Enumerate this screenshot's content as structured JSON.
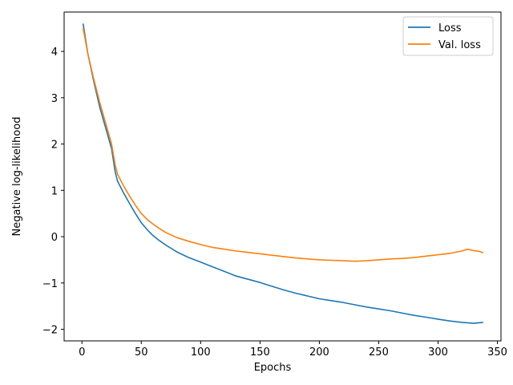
{
  "chart_data": {
    "type": "line",
    "title": "",
    "xlabel": "Epochs",
    "ylabel": "Negative log-likelihood",
    "xlim": [
      -15,
      353
    ],
    "ylim": [
      -2.25,
      4.85
    ],
    "xticks": [
      0,
      50,
      100,
      150,
      200,
      250,
      300,
      350
    ],
    "yticks": [
      -2,
      -1,
      0,
      1,
      2,
      3,
      4
    ],
    "grid": false,
    "legend_position": "top-right",
    "series": [
      {
        "name": "Loss",
        "color": "#1f77b4",
        "x": [
          1,
          5,
          10,
          15,
          20,
          25,
          28,
          30,
          35,
          40,
          45,
          50,
          55,
          60,
          65,
          70,
          75,
          80,
          90,
          100,
          110,
          120,
          130,
          140,
          150,
          160,
          170,
          180,
          190,
          200,
          210,
          220,
          230,
          240,
          250,
          260,
          270,
          280,
          290,
          300,
          310,
          320,
          330,
          338
        ],
        "y": [
          4.6,
          3.95,
          3.35,
          2.8,
          2.35,
          1.9,
          1.4,
          1.2,
          0.95,
          0.72,
          0.5,
          0.3,
          0.15,
          0.02,
          -0.08,
          -0.17,
          -0.25,
          -0.33,
          -0.45,
          -0.55,
          -0.65,
          -0.75,
          -0.85,
          -0.92,
          -0.99,
          -1.07,
          -1.15,
          -1.22,
          -1.28,
          -1.34,
          -1.38,
          -1.42,
          -1.47,
          -1.52,
          -1.56,
          -1.6,
          -1.65,
          -1.7,
          -1.74,
          -1.78,
          -1.82,
          -1.85,
          -1.87,
          -1.85
        ]
      },
      {
        "name": "Val. loss",
        "color": "#ff7f0e",
        "x": [
          1,
          5,
          10,
          15,
          20,
          25,
          28,
          30,
          35,
          40,
          45,
          50,
          55,
          60,
          65,
          70,
          75,
          80,
          90,
          100,
          110,
          120,
          130,
          140,
          150,
          160,
          170,
          180,
          190,
          200,
          210,
          220,
          230,
          240,
          250,
          260,
          270,
          280,
          290,
          300,
          310,
          320,
          325,
          330,
          335,
          338
        ],
        "y": [
          4.5,
          3.95,
          3.4,
          2.9,
          2.45,
          2.0,
          1.55,
          1.35,
          1.1,
          0.88,
          0.68,
          0.5,
          0.37,
          0.27,
          0.18,
          0.1,
          0.04,
          -0.02,
          -0.1,
          -0.17,
          -0.23,
          -0.27,
          -0.31,
          -0.34,
          -0.37,
          -0.4,
          -0.43,
          -0.46,
          -0.48,
          -0.5,
          -0.51,
          -0.52,
          -0.53,
          -0.52,
          -0.5,
          -0.48,
          -0.47,
          -0.45,
          -0.42,
          -0.39,
          -0.36,
          -0.31,
          -0.27,
          -0.3,
          -0.32,
          -0.35
        ]
      }
    ]
  }
}
